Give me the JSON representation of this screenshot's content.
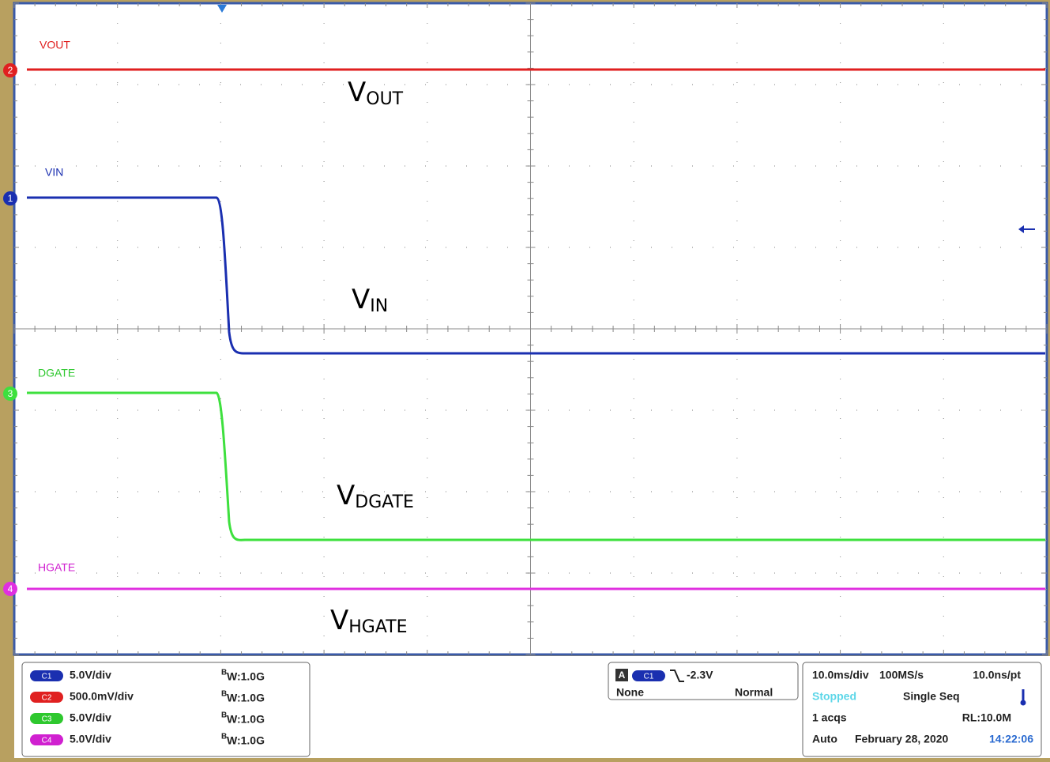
{
  "traces": [
    {
      "label": "VOUT",
      "marker": "2",
      "annotation": "V",
      "annotation_sub": "OUT"
    },
    {
      "label": "VIN",
      "marker": "1",
      "annotation": "V",
      "annotation_sub": "IN"
    },
    {
      "label": "DGATE",
      "marker": "3",
      "annotation": "V",
      "annotation_sub": "DGATE"
    },
    {
      "label": "HGATE",
      "marker": "4",
      "annotation": "V",
      "annotation_sub": "HGATE"
    }
  ],
  "channels": [
    {
      "badge": "C1",
      "scale": "5.0V/div",
      "bw_b": "B",
      "bw_rest": "W:1.0G"
    },
    {
      "badge": "C2",
      "scale": "500.0mV/div",
      "bw_b": "B",
      "bw_rest": "W:1.0G"
    },
    {
      "badge": "C3",
      "scale": "5.0V/div",
      "bw_b": "B",
      "bw_rest": "W:1.0G"
    },
    {
      "badge": "C4",
      "scale": "5.0V/div",
      "bw_b": "B",
      "bw_rest": "W:1.0G"
    }
  ],
  "trigger": {
    "mode_badge": "A",
    "source": "C1",
    "level": "-2.3V",
    "coupling": "None",
    "type": "Normal"
  },
  "timebase": {
    "scale": "10.0ms/div",
    "rate": "100MS/s",
    "resolution": "10.0ns/pt",
    "state": "Stopped",
    "acq_mode": "Single Seq",
    "acqs": "1 acqs",
    "record_length": "RL:10.0M",
    "run_mode": "Auto",
    "date": "February 28, 2020",
    "time": "14:22:06"
  }
}
